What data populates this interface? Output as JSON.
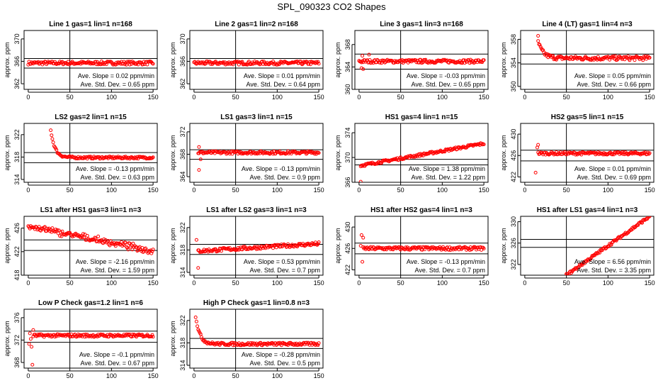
{
  "title": "SPL_090323  CO2 Shapes",
  "colors": {
    "points": "#ff0000",
    "axes": "#000000"
  },
  "chart_data": [
    {
      "type": "scatter",
      "title": "Line 1 gas=1 lin=1 n=168",
      "ylabel": "approx. ppm",
      "xticks": [
        0,
        50,
        100,
        150
      ],
      "yticks": [
        362,
        366,
        370
      ],
      "ylim": [
        361,
        371.5
      ],
      "xlim": [
        -5,
        155
      ],
      "hlines": [
        366.5,
        364.8
      ],
      "vline": 50,
      "shape": "flat",
      "level": 365.7,
      "noise": 0.3,
      "slope_text": "Ave. Slope =  0.02  ppm/min",
      "std_text": "Ave. Std. Dev. =  0.65  ppm"
    },
    {
      "type": "scatter",
      "title": "Line 2 gas=1 lin=2 n=168",
      "ylabel": "approx. ppm",
      "xticks": [
        0,
        50,
        100,
        150
      ],
      "yticks": [
        362,
        366,
        370
      ],
      "ylim": [
        361,
        371.5
      ],
      "xlim": [
        -5,
        155
      ],
      "hlines": [
        366.5,
        364.8
      ],
      "vline": 50,
      "shape": "flat",
      "level": 365.7,
      "noise": 0.3,
      "slope_text": "Ave. Slope =  0.01  ppm/min",
      "std_text": "Ave. Std. Dev. =  0.64  ppm"
    },
    {
      "type": "scatter",
      "title": "Line 3 gas=1 lin=3 n=168",
      "ylabel": "approx. ppm",
      "xticks": [
        0,
        50,
        100,
        150
      ],
      "yticks": [
        360,
        364,
        368
      ],
      "ylim": [
        360,
        370.5
      ],
      "xlim": [
        -5,
        155
      ],
      "hlines": [
        366.3,
        363.6
      ],
      "vline": 50,
      "shape": "flat",
      "level": 365,
      "noise": 0.3,
      "outliers": [
        [
          3,
          363.8
        ],
        [
          5,
          363.6
        ],
        [
          4,
          366
        ],
        [
          12,
          366.2
        ]
      ],
      "slope_text": "Ave. Slope =  -0.03  ppm/min",
      "std_text": "Ave. Std. Dev. =  0.65  ppm"
    },
    {
      "type": "scatter",
      "title": "Line 4 (LT) gas=1 lin=4 n=3",
      "ylabel": "approx. ppm",
      "xticks": [
        0,
        50,
        100,
        150
      ],
      "yticks": [
        350,
        354,
        358
      ],
      "ylim": [
        349.5,
        359.5
      ],
      "xlim": [
        -5,
        155
      ],
      "hlines": [
        355.5,
        353.8
      ],
      "vline": 50,
      "shape": "decay",
      "level": 354.8,
      "noise": 0.35,
      "start": 16,
      "amp": 2.8,
      "tau": 6,
      "outliers": [
        [
          16,
          358.6
        ]
      ],
      "slope_text": "Ave. Slope =  0.05  ppm/min",
      "std_text": "Ave. Std. Dev. =  0.66  ppm"
    },
    {
      "type": "scatter",
      "title": "LS2 gas=2 lin=1 n=15",
      "ylabel": "approx. ppm",
      "xticks": [
        0,
        50,
        100,
        150
      ],
      "yticks": [
        314,
        318,
        322
      ],
      "ylim": [
        313.5,
        324
      ],
      "xlim": [
        -5,
        155
      ],
      "hlines": [
        318.8,
        317
      ],
      "vline": 50,
      "shape": "decay",
      "level": 317.9,
      "noise": 0.2,
      "start": 27,
      "amp": 5,
      "tau": 5,
      "slope_text": "Ave. Slope =  -0.13  ppm/min",
      "std_text": "Ave. Std. Dev. =  0.63  ppm"
    },
    {
      "type": "scatter",
      "title": "LS1 gas=3 lin=1 n=15",
      "ylabel": "approx. ppm",
      "xticks": [
        0,
        50,
        100,
        150
      ],
      "yticks": [
        364,
        368,
        372
      ],
      "ylim": [
        363,
        373.5
      ],
      "xlim": [
        -5,
        155
      ],
      "hlines": [
        368.8,
        367.1
      ],
      "vline": 50,
      "shape": "flat",
      "level": 368.3,
      "noise": 0.25,
      "start": 5,
      "outliers": [
        [
          6,
          369.3
        ],
        [
          6,
          365.2
        ],
        [
          8,
          367.1
        ]
      ],
      "slope_text": "Ave. Slope =  -0.13  ppm/min",
      "std_text": "Ave. Std. Dev. =  0.9  ppm"
    },
    {
      "type": "scatter",
      "title": "HS1 gas=4 lin=1 n=15",
      "ylabel": "approx. ppm",
      "xticks": [
        0,
        50,
        100,
        150
      ],
      "yticks": [
        366,
        370,
        374
      ],
      "ylim": [
        366,
        375.5
      ],
      "xlim": [
        -5,
        155
      ],
      "hlines": [
        369.7,
        368.8
      ],
      "vline": 50,
      "shape": "rise",
      "level": 368.7,
      "noise": 0.2,
      "start": 2,
      "slope": 0.024,
      "outliers": [
        [
          2,
          366.1
        ]
      ],
      "slope_text": "Ave. Slope =  1.38  ppm/min",
      "std_text": "Ave. Std. Dev. =  1.22  ppm"
    },
    {
      "type": "scatter",
      "title": "HS2 gas=5 lin=1 n=15",
      "ylabel": "approx. ppm",
      "xticks": [
        0,
        50,
        100,
        150
      ],
      "yticks": [
        422,
        426,
        430
      ],
      "ylim": [
        421,
        432
      ],
      "xlim": [
        -5,
        155
      ],
      "hlines": [
        427,
        425
      ],
      "vline": 50,
      "shape": "flat",
      "level": 426.4,
      "noise": 0.25,
      "start": 16,
      "outliers": [
        [
          13,
          422.8
        ],
        [
          15,
          427.5
        ],
        [
          16,
          428
        ]
      ],
      "slope_text": "Ave. Slope =  0.01  ppm/min",
      "std_text": "Ave. Std. Dev. =  0.69  ppm"
    },
    {
      "type": "scatter",
      "title": "LS1 after HS1 gas=3 lin=1 n=3",
      "ylabel": "approx. ppm",
      "xticks": [
        0,
        50,
        100,
        150
      ],
      "yticks": [
        418,
        422,
        426
      ],
      "ylim": [
        418,
        428
      ],
      "xlim": [
        -5,
        155
      ],
      "hlines": [
        424,
        422.2
      ],
      "vline": 50,
      "shape": "down",
      "level": 426.3,
      "noise": 0.35,
      "start": 0,
      "slope": -0.028,
      "slope_text": "Ave. Slope =  -2.16  ppm/min",
      "std_text": "Ave. Std. Dev. =  1.59  ppm"
    },
    {
      "type": "scatter",
      "title": "LS1 after LS2 gas=3 lin=1 n=3",
      "ylabel": "approx. ppm",
      "xticks": [
        0,
        50,
        100,
        150
      ],
      "yticks": [
        314,
        318,
        322
      ],
      "ylim": [
        313.5,
        324
      ],
      "xlim": [
        -5,
        155
      ],
      "hlines": [
        319,
        317.2
      ],
      "vline": 50,
      "shape": "rise",
      "level": 317.8,
      "noise": 0.3,
      "start": 5,
      "slope": 0.009,
      "outliers": [
        [
          3,
          319.8
        ],
        [
          5,
          314.8
        ]
      ],
      "slope_text": "Ave. Slope =  0.53  ppm/min",
      "std_text": "Ave. Std. Dev. =  0.7  ppm"
    },
    {
      "type": "scatter",
      "title": "HS1 after HS2 gas=4 lin=1 n=3",
      "ylabel": "approx. ppm",
      "xticks": [
        0,
        50,
        100,
        150
      ],
      "yticks": [
        422,
        426,
        430
      ],
      "ylim": [
        421,
        432
      ],
      "xlim": [
        -5,
        155
      ],
      "hlines": [
        427,
        425
      ],
      "vline": 50,
      "shape": "flat",
      "level": 426,
      "noise": 0.3,
      "start": 5,
      "outliers": [
        [
          3,
          428.5
        ],
        [
          5,
          428
        ],
        [
          4,
          423.5
        ],
        [
          2,
          426.5
        ]
      ],
      "slope_text": "Ave. Slope =  -0.13  ppm/min",
      "std_text": "Ave. Std. Dev. =  0.7  ppm"
    },
    {
      "type": "scatter",
      "title": "HS1 after LS1 gas=4 lin=1 n=3",
      "ylabel": "approx. ppm",
      "xticks": [
        0,
        50,
        100,
        150
      ],
      "yticks": [
        322,
        326,
        330
      ],
      "ylim": [
        320,
        331
      ],
      "xlim": [
        -5,
        155
      ],
      "hlines": [
        326.7,
        325.2
      ],
      "vline": 50,
      "shape": "ramp",
      "level": 320,
      "noise": 0.25,
      "start": 50,
      "slope": 0.11,
      "slope_text": "Ave. Slope =  6.56  ppm/min",
      "std_text": "Ave. Std. Dev. =  3.35  ppm"
    },
    {
      "type": "scatter",
      "title": "Low P Check gas=1.2 lin=1 n=6",
      "ylabel": "approx. ppm",
      "xticks": [
        0,
        50,
        100,
        150
      ],
      "yticks": [
        368,
        372,
        376
      ],
      "ylim": [
        367,
        377.5
      ],
      "xlim": [
        -5,
        155
      ],
      "hlines": [
        373.6,
        371.6
      ],
      "vline": 50,
      "shape": "flat",
      "level": 372.8,
      "noise": 0.25,
      "start": 6,
      "outliers": [
        [
          1,
          371.3
        ],
        [
          2,
          373.2
        ],
        [
          3,
          372.2
        ],
        [
          4,
          370.8
        ],
        [
          5,
          367.6
        ],
        [
          6,
          373.8
        ]
      ],
      "slope_text": "Ave. Slope =  -0.1  ppm/min",
      "std_text": "Ave. Std. Dev. =  0.67  ppm"
    },
    {
      "type": "scatter",
      "title": "High P Check gas=1 lin=0.8 n=3",
      "ylabel": "approx. ppm",
      "xticks": [
        0,
        50,
        100,
        150
      ],
      "yticks": [
        314,
        318,
        322
      ],
      "ylim": [
        313.5,
        324
      ],
      "xlim": [
        -5,
        155
      ],
      "hlines": [
        318.8,
        317
      ],
      "vline": 50,
      "shape": "decay",
      "level": 317.8,
      "noise": 0.25,
      "start": 2,
      "amp": 5,
      "tau": 5,
      "slope_text": "Ave. Slope =  -0.28  ppm/min",
      "std_text": "Ave. Std. Dev. =  0.5  ppm"
    }
  ]
}
